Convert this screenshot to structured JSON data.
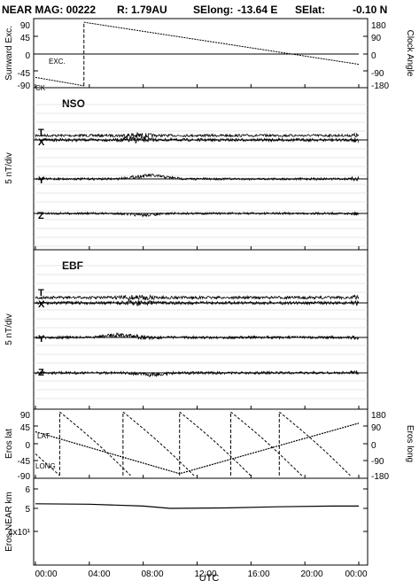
{
  "header": {
    "title_parts": [
      "NEAR MAG: 00222",
      "R: 1.79AU",
      "SElong:",
      "-13.64 E",
      "SElat:",
      "-0.10 N"
    ]
  },
  "xaxis": {
    "ticks": [
      "00:00",
      "04:00",
      "08:00",
      "12:00",
      "16:00",
      "20:00",
      "00:00"
    ],
    "label": "UTC"
  },
  "panel1": {
    "left_label": "Sunward Exc.",
    "right_label": "Clock Angle",
    "left_ticks": [
      "90",
      "45",
      "0",
      "-45",
      "-90"
    ],
    "right_ticks": [
      "180",
      "90",
      "0",
      "-90",
      "-180"
    ],
    "annot_exc": "EXC.",
    "annot_ck": "CK"
  },
  "panel2": {
    "title": "NSO",
    "ylabel": "5 nT/div",
    "components": [
      "T",
      "X",
      "Y",
      "Z"
    ]
  },
  "panel3": {
    "title": "EBF",
    "ylabel": "5 nT/div",
    "components": [
      "T",
      "X",
      "Y",
      "Z"
    ]
  },
  "panel4": {
    "left_label": "Eros lat",
    "right_label": "Eros long",
    "left_ticks": [
      "90",
      "45",
      "0",
      "-45",
      "-90"
    ],
    "right_ticks": [
      "180",
      "90",
      "0",
      "-90",
      "-180"
    ],
    "annot_lat": "LAT",
    "annot_long": "LONG"
  },
  "panel5": {
    "ylabel": "Eros-NEAR km",
    "ticks": [
      "6",
      "5",
      "4x10¹"
    ]
  },
  "chart_data": [
    {
      "type": "line",
      "panel": "sunward-excursion-clock-angle",
      "x_unit": "hours UTC",
      "series": [
        {
          "name": "EXC.",
          "axis": "left",
          "x": [
            0,
            24
          ],
          "y": [
            0,
            0
          ]
        },
        {
          "name": "CK",
          "axis": "right",
          "x": [
            0,
            3.6,
            3.6,
            24
          ],
          "y": [
            -125,
            -170,
            170,
            -55
          ]
        }
      ],
      "ylim_left": [
        -90,
        90
      ],
      "ylim_right": [
        -180,
        180
      ]
    },
    {
      "type": "line",
      "panel": "NSO",
      "x_unit": "hours UTC",
      "series_names": [
        "T",
        "X",
        "Y",
        "Z"
      ]
    },
    {
      "type": "line",
      "panel": "EBF",
      "x_unit": "hours UTC",
      "series_names": [
        "T",
        "X",
        "Y",
        "Z"
      ]
    },
    {
      "type": "line",
      "panel": "eros-lat-long",
      "x_unit": "hours UTC",
      "series": [
        {
          "name": "LAT",
          "axis": "left",
          "x": [
            0,
            10.7,
            24
          ],
          "y": [
            32,
            -80,
            55
          ]
        },
        {
          "name": "LONG",
          "axis": "right",
          "x": [
            1.8,
            6.5,
            10.7,
            14.5,
            18.1,
            24
          ],
          "y": [
            170,
            170,
            170,
            170,
            170,
            -155
          ],
          "period_hours": 5.27
        }
      ],
      "ylim_left": [
        -90,
        90
      ],
      "ylim_right": [
        -180,
        180
      ]
    },
    {
      "type": "line",
      "panel": "eros-near-distance",
      "x_unit": "hours UTC",
      "series": [
        {
          "name": "",
          "x": [
            0,
            4,
            8,
            10,
            14,
            18,
            22,
            24
          ],
          "y": [
            52,
            51.8,
            51,
            50,
            50.2,
            50.7,
            51,
            51
          ]
        }
      ],
      "ylim": [
        35,
        65
      ]
    }
  ]
}
